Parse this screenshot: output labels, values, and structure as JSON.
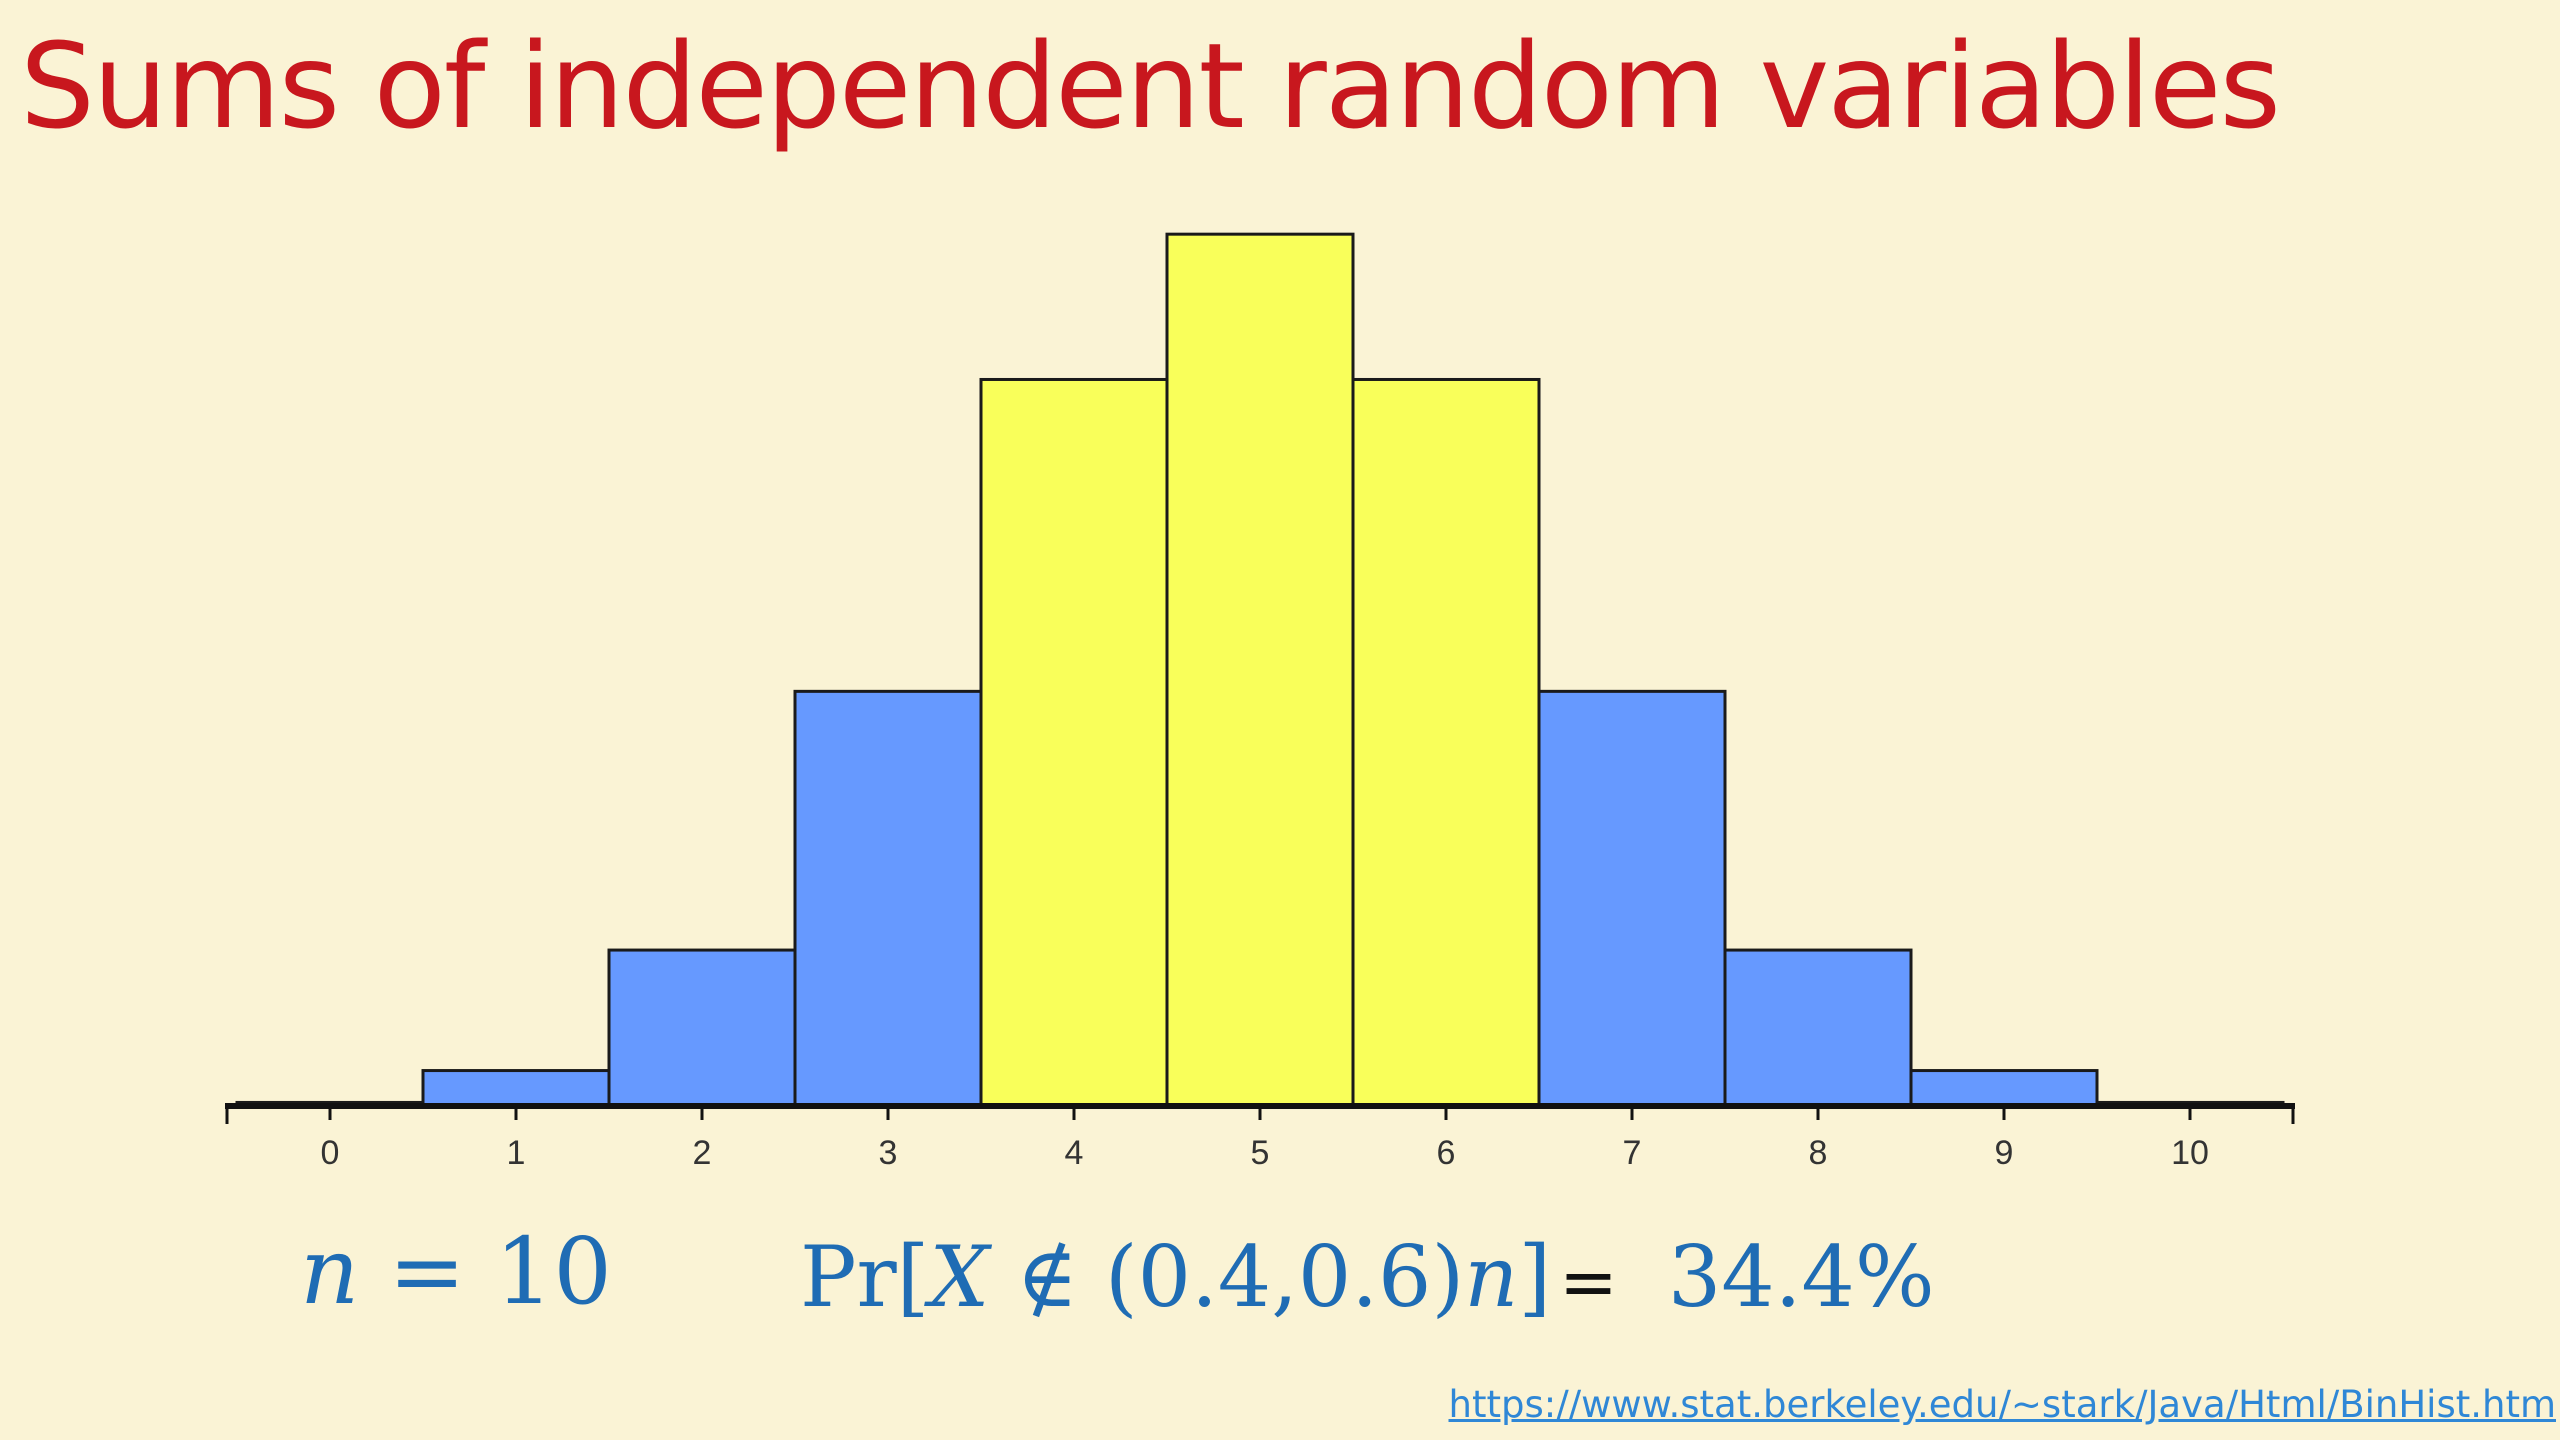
{
  "slide": {
    "title": "Sums of independent random variables",
    "n_label": {
      "var": "n",
      "rest": " = 10"
    },
    "prob": {
      "prefix": "Pr[",
      "var": "X",
      "middle": " ∉ (0.4,0.6)",
      "n_var": "n",
      "close": "]",
      "equals": "=",
      "value": "34.4%"
    },
    "source_url": "https://www.stat.berkeley.edu/~stark/Java/Html/BinHist.htm"
  },
  "colors": {
    "background": "#faf3d5",
    "title": "#c8171e",
    "bar_blue": "#6699ff",
    "bar_yellow": "#f9ff5a",
    "bar_outline": "#1a1a1a",
    "formula": "#1f6cb4",
    "link": "#2f87d6"
  },
  "chart_data": {
    "type": "bar",
    "title": "",
    "xlabel": "",
    "ylabel": "",
    "categories": [
      "0",
      "1",
      "2",
      "3",
      "4",
      "5",
      "6",
      "7",
      "8",
      "9",
      "10"
    ],
    "values": [
      0.001,
      0.01,
      0.044,
      0.117,
      0.205,
      0.246,
      0.205,
      0.117,
      0.044,
      0.01,
      0.001
    ],
    "highlighted": [
      false,
      false,
      false,
      false,
      true,
      true,
      true,
      false,
      false,
      false,
      false
    ],
    "ylim": [
      0,
      0.25
    ],
    "grid": false,
    "legend": "none"
  }
}
